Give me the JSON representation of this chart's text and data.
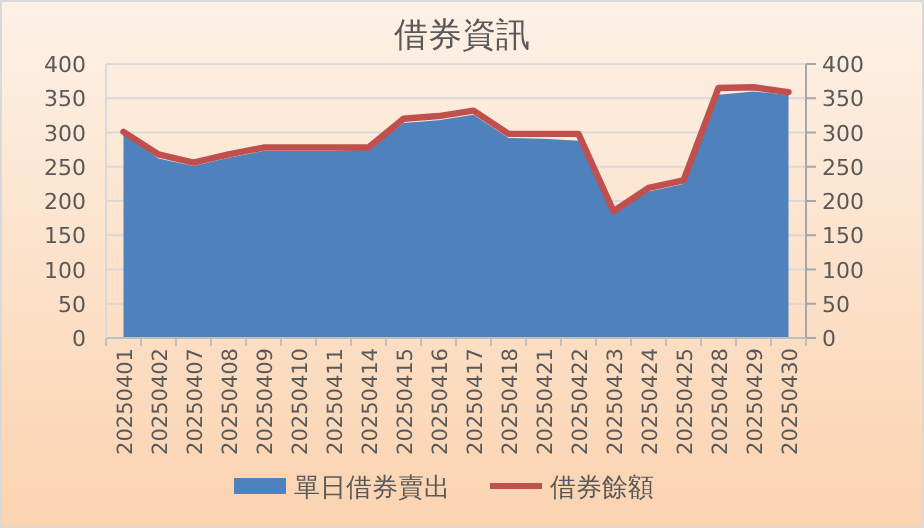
{
  "chart_data": {
    "type": "area",
    "title": "借券資訊",
    "categories": [
      "20250401",
      "20250402",
      "20250407",
      "20250408",
      "20250409",
      "20250410",
      "20250411",
      "20250414",
      "20250415",
      "20250416",
      "20250417",
      "20250418",
      "20250421",
      "20250422",
      "20250423",
      "20250424",
      "20250425",
      "20250428",
      "20250429",
      "20250430"
    ],
    "series": [
      {
        "name": "單日借券賣出",
        "color": "#4f81bd",
        "values": [
          300,
          262,
          251,
          263,
          273,
          273,
          273,
          275,
          314,
          318,
          326,
          292,
          291,
          288,
          181,
          214,
          225,
          355,
          360,
          355
        ]
      },
      {
        "name": "借券餘額",
        "type": "line",
        "color": "#c0504d",
        "values": [
          301,
          268,
          256,
          268,
          278,
          278,
          278,
          278,
          320,
          324,
          332,
          298,
          298,
          298,
          185,
          219,
          230,
          365,
          366,
          359
        ]
      }
    ],
    "ylim": [
      0,
      400
    ],
    "yticks": [
      0,
      50,
      100,
      150,
      200,
      250,
      300,
      350,
      400
    ],
    "y2lim": [
      0,
      400
    ],
    "y2ticks": [
      0,
      50,
      100,
      150,
      200,
      250,
      300,
      350,
      400
    ],
    "grid": "y",
    "legend": "bottom"
  }
}
